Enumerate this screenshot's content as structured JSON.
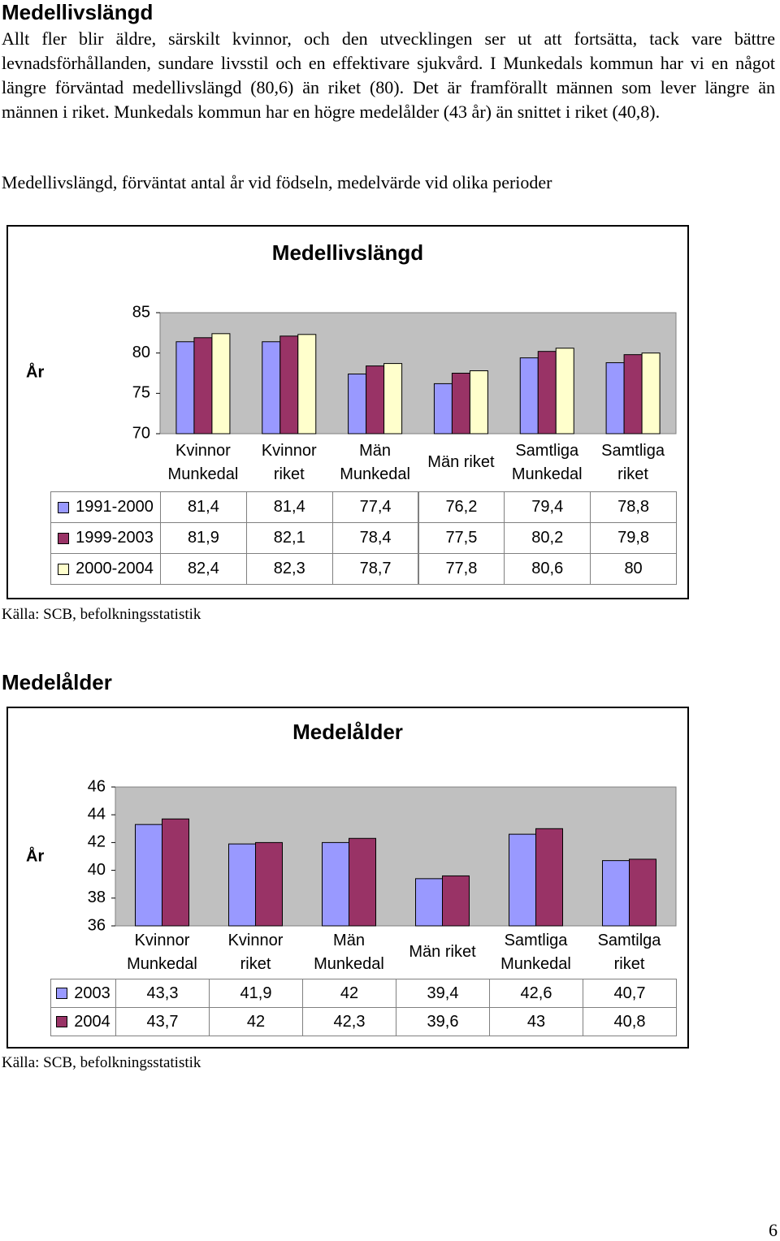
{
  "heading1": "Medellivslängd",
  "paragraph": "Allt fler blir äldre, särskilt kvinnor, och den utvecklingen ser ut att fortsätta, tack vare bättre levnadsförhållanden, sundare livsstil och en effektivare sjukvård. I Munkedals kommun har vi en något längre förväntad medellivslängd (80,6) än riket (80). Det är framförallt männen som lever längre än männen i riket. Munkedals kommun har en högre medelålder (43 år) än snittet i riket (40,8).",
  "caption1": "Medellivslängd, förväntat antal år vid födseln, medelvärde vid olika perioder",
  "source1": "Källa: SCB, befolkningsstatistik",
  "heading2": "Medelålder",
  "source2": "Källa: SCB, befolkningsstatistik",
  "page_number": "6",
  "chart_data": [
    {
      "type": "bar",
      "title": "Medellivslängd",
      "y_label": "År",
      "categories": [
        "Kvinnor Munkedal",
        "Kvinnor riket",
        "Män Munkedal",
        "Män riket",
        "Samtliga Munkedal",
        "Samtliga riket"
      ],
      "series": [
        {
          "name": "1991-2000",
          "color": "#9999ff",
          "values": [
            81.4,
            81.4,
            77.4,
            76.2,
            79.4,
            78.8
          ],
          "value_labels": [
            "81,4",
            "81,4",
            "77,4",
            "76,2",
            "79,4",
            "78,8"
          ]
        },
        {
          "name": "1999-2003",
          "color": "#993366",
          "values": [
            81.9,
            82.1,
            78.4,
            77.5,
            80.2,
            79.8
          ],
          "value_labels": [
            "81,9",
            "82,1",
            "78,4",
            "77,5",
            "80,2",
            "79,8"
          ]
        },
        {
          "name": "2000-2004",
          "color": "#ffffcc",
          "values": [
            82.4,
            82.3,
            78.7,
            77.8,
            80.6,
            80
          ],
          "value_labels": [
            "82,4",
            "82,3",
            "78,7",
            "77,8",
            "80,6",
            "80"
          ]
        }
      ],
      "ylim": [
        70,
        85
      ],
      "yticks": [
        70,
        75,
        80,
        85
      ],
      "grid": false
    },
    {
      "type": "bar",
      "title": "Medelålder",
      "y_label": "År",
      "categories": [
        "Kvinnor Munkedal",
        "Kvinnor riket",
        "Män Munkedal",
        "Män riket",
        "Samtliga Munkedal",
        "Samtilga riket"
      ],
      "series": [
        {
          "name": "2003",
          "color": "#9999ff",
          "values": [
            43.3,
            41.9,
            42,
            39.4,
            42.6,
            40.7
          ],
          "value_labels": [
            "43,3",
            "41,9",
            "42",
            "39,4",
            "42,6",
            "40,7"
          ]
        },
        {
          "name": "2004",
          "color": "#993366",
          "values": [
            43.7,
            42,
            42.3,
            39.6,
            43,
            40.8
          ],
          "value_labels": [
            "43,7",
            "42",
            "42,3",
            "39,6",
            "43",
            "40,8"
          ]
        }
      ],
      "ylim": [
        36,
        46
      ],
      "yticks": [
        36,
        38,
        40,
        42,
        44,
        46
      ],
      "grid": false
    }
  ]
}
